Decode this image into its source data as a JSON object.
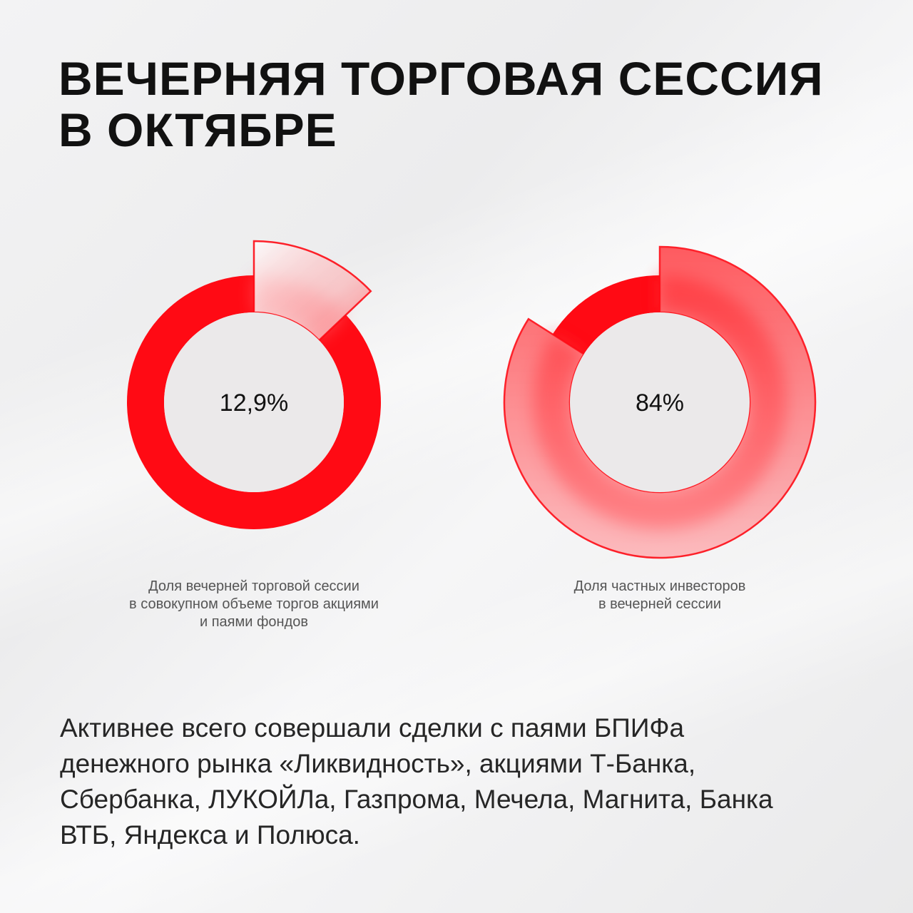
{
  "header": {
    "title_lines": [
      "ВЕЧЕРНЯЯ ТОРГОВАЯ СЕССИЯ",
      "В ОКТЯБРЕ"
    ]
  },
  "colors": {
    "accent": "#ff0a14",
    "accent_soft": "#ff8c90",
    "hole": "#ebe9ea"
  },
  "chart_data": [
    {
      "type": "pie",
      "style": "donut",
      "value_label": "12,9%",
      "values": [
        87.1,
        12.9
      ],
      "highlighted_slice": 1,
      "caption_lines": [
        "Доля вечерней торговой сессии",
        "в совокупном объеме торгов акциями",
        "и паями фондов"
      ]
    },
    {
      "type": "pie",
      "style": "donut",
      "value_label": "84%",
      "values": [
        16,
        84
      ],
      "highlighted_slice": 1,
      "caption_lines": [
        "Доля частных инвесторов",
        "в вечерней сессии"
      ]
    }
  ],
  "body": {
    "lines": [
      "Активнее всего совершали сделки с паями БПИФа",
      "денежного рынка «Ликвидность», акциями Т-Банка,",
      "Сбербанка, ЛУКОЙЛа, Газпрома, Мечела, Магнита, Банка",
      "ВТБ, Яндекса и Полюса."
    ]
  }
}
